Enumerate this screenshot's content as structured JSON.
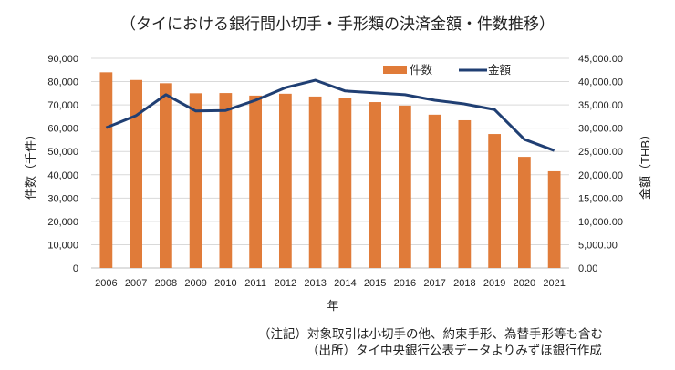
{
  "chart_data": {
    "type": "bar",
    "title": "（タイにおける銀行間小切手・手形類の決済金額・件数推移）",
    "xlabel": "年",
    "ylabel": "件数（千件）",
    "y2label": "金額（THB）",
    "categories": [
      "2006",
      "2007",
      "2008",
      "2009",
      "2010",
      "2011",
      "2012",
      "2013",
      "2014",
      "2015",
      "2016",
      "2017",
      "2018",
      "2019",
      "2020",
      "2021"
    ],
    "ylim": [
      0,
      90000
    ],
    "y2lim": [
      0,
      45000
    ],
    "yticks": [
      "0",
      "10,000",
      "20,000",
      "30,000",
      "40,000",
      "50,000",
      "60,000",
      "70,000",
      "80,000",
      "90,000"
    ],
    "y2ticks": [
      "0.00",
      "5,000.00",
      "10,000.00",
      "15,000.00",
      "20,000.00",
      "25,000.00",
      "30,000.00",
      "35,000.00",
      "40,000.00",
      "45,000.00"
    ],
    "grid": true,
    "legend_position": "top-right",
    "series": [
      {
        "name": "件数",
        "type": "bar",
        "axis": "left",
        "color": "#E07B39",
        "values": [
          84000,
          80700,
          79300,
          75000,
          75100,
          74000,
          74800,
          73600,
          72800,
          71200,
          69700,
          65800,
          63400,
          57500,
          47700,
          41500
        ]
      },
      {
        "name": "金額",
        "type": "line",
        "axis": "right",
        "color": "#203F73",
        "values": [
          30100,
          32700,
          37200,
          33700,
          33800,
          36000,
          38700,
          40300,
          38000,
          37600,
          37200,
          36000,
          35200,
          34000,
          27600,
          25200
        ]
      }
    ]
  },
  "notes": {
    "note1": "（注記）対象取引は小切手の他、約束手形、為替手形等も含む",
    "note2": "（出所）タイ中央銀行公表データよりみずほ銀行作成"
  }
}
